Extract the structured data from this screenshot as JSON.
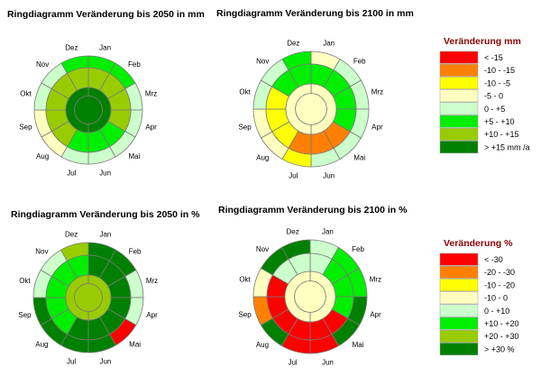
{
  "months": [
    "Jan",
    "Feb",
    "Mrz",
    "Apr",
    "Mai",
    "Jun",
    "Jul",
    "Aug",
    "Sep",
    "Okt",
    "Nov",
    "Dez"
  ],
  "scales": {
    "mm": [
      {
        "label": "< -15",
        "color": "#ff0000"
      },
      {
        "label": "-10 - -15",
        "color": "#ff8000"
      },
      {
        "label": "-10 - -5",
        "color": "#ffff00"
      },
      {
        "label": "-5 - 0",
        "color": "#ffffc0"
      },
      {
        "label": "0 - +5",
        "color": "#ccffcc"
      },
      {
        "label": "+5 - +10",
        "color": "#00ee00"
      },
      {
        "label": "+10 - +15",
        "color": "#99cc00"
      },
      {
        "label": "> +15 mm /a",
        "color": "#008000"
      }
    ],
    "pct": [
      {
        "label": "< -30",
        "color": "#ff0000"
      },
      {
        "label": "-20 - -30",
        "color": "#ff8000"
      },
      {
        "label": "-10 - -20",
        "color": "#ffff00"
      },
      {
        "label": "-10 - 0",
        "color": "#ffffc0"
      },
      {
        "label": "0 - +10",
        "color": "#ccffcc"
      },
      {
        "label": "+10 - +20",
        "color": "#00ee00"
      },
      {
        "label": "+20 - +30",
        "color": "#99cc00"
      },
      {
        "label": "> +30 %",
        "color": "#008000"
      }
    ]
  },
  "legends": [
    {
      "title": "Veränderung mm",
      "scale": "mm"
    },
    {
      "title": "Veränderung %",
      "scale": "pct"
    }
  ],
  "chart_data": [
    {
      "type": "ring",
      "title": "Ringdiagramm Veränderung bis 2050 in mm",
      "scale": "mm",
      "outer": [
        5,
        5,
        4,
        4,
        4,
        4,
        4,
        3,
        3,
        4,
        4,
        5
      ],
      "middle": [
        6,
        6,
        6,
        6,
        5,
        5,
        5,
        6,
        6,
        6,
        6,
        6
      ],
      "inner_halves": [
        7,
        7
      ],
      "center": 7
    },
    {
      "type": "ring",
      "title": "Ringdiagramm Veränderung bis 2100 in mm",
      "scale": "mm",
      "outer": [
        3,
        4,
        4,
        4,
        4,
        4,
        2,
        3,
        3,
        4,
        4,
        5
      ],
      "middle": [
        5,
        5,
        5,
        5,
        1,
        1,
        1,
        2,
        2,
        2,
        5,
        5
      ],
      "inner_halves": [
        3,
        3
      ],
      "center": 3
    },
    {
      "type": "ring",
      "title": "Ringdiagramm Veränderung bis 2050 in %",
      "scale": "pct",
      "outer": [
        7,
        7,
        4,
        4,
        0,
        7,
        7,
        7,
        7,
        4,
        4,
        6
      ],
      "middle": [
        7,
        7,
        7,
        7,
        7,
        7,
        7,
        5,
        5,
        5,
        5,
        5
      ],
      "inner_halves": [
        6,
        6
      ],
      "center": 6
    },
    {
      "type": "ring",
      "title": "Ringdiagramm Veränderung bis 2100 in %",
      "scale": "pct",
      "outer": [
        4,
        5,
        5,
        7,
        7,
        0,
        0,
        7,
        1,
        3,
        7,
        7
      ],
      "middle": [
        4,
        5,
        5,
        5,
        0,
        0,
        0,
        0,
        0,
        0,
        4,
        4
      ],
      "inner_halves": [
        3,
        3
      ],
      "center": 3
    }
  ]
}
